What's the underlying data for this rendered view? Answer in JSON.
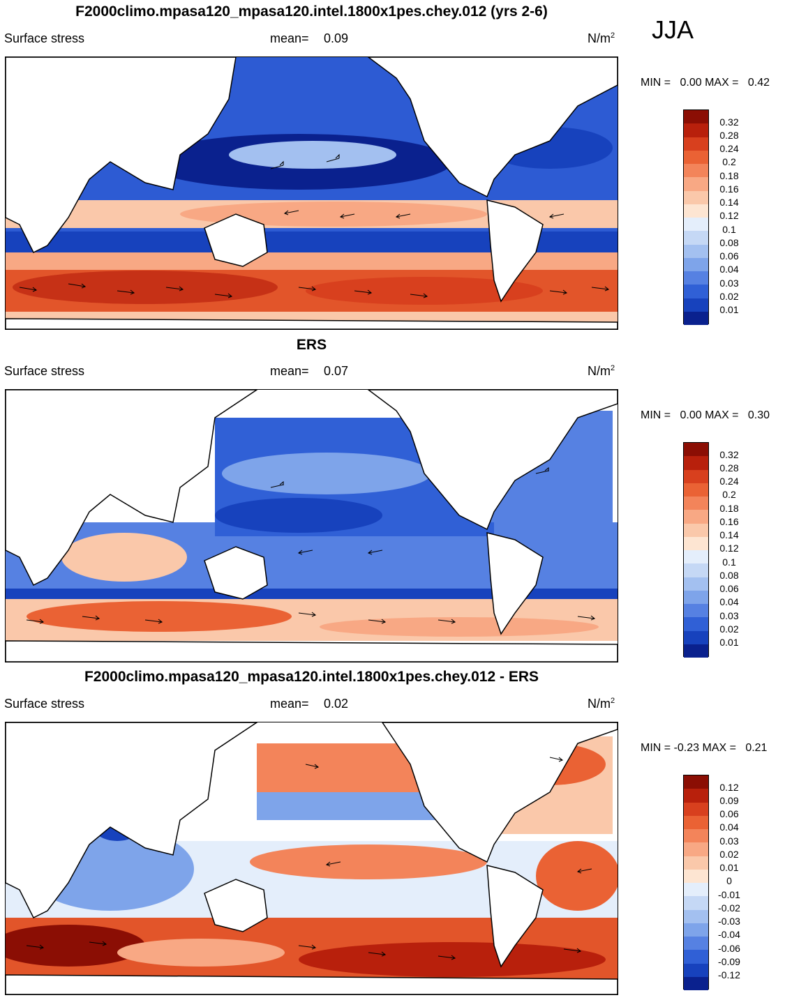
{
  "season": "JJA",
  "panels": [
    {
      "title": "F2000climo.mpasa120_mpasa120.intel.1800x1pes.chey.012 (yrs 2-6)",
      "variable": "Surface stress",
      "mean_label": "mean=",
      "mean_value": "0.09",
      "units": "N/m",
      "units_sup": "2",
      "min_label": "MIN =",
      "min_value": "0.00",
      "max_label": "MAX =",
      "max_value": "0.42",
      "colorbar_labels": [
        "0.32",
        "0.28",
        "0.24",
        "0.2",
        "0.18",
        "0.16",
        "0.14",
        "0.12",
        "0.1",
        "0.08",
        "0.06",
        "0.04",
        "0.03",
        "0.02",
        "0.01"
      ],
      "colorbar_colors": [
        "#8b0e04",
        "#b8200c",
        "#d8401e",
        "#ea6234",
        "#f3845a",
        "#f8a884",
        "#fac8aa",
        "#fde5d2",
        "#e4eefb",
        "#c5d8f5",
        "#a3c0f0",
        "#7ea4ea",
        "#5681e2",
        "#3060d6",
        "#1742bd",
        "#0a218e"
      ]
    },
    {
      "title": "ERS",
      "variable": "Surface stress",
      "mean_label": "mean=",
      "mean_value": "0.07",
      "units": "N/m",
      "units_sup": "2",
      "min_label": "MIN =",
      "min_value": "0.00",
      "max_label": "MAX =",
      "max_value": "0.30",
      "colorbar_labels": [
        "0.32",
        "0.28",
        "0.24",
        "0.2",
        "0.18",
        "0.16",
        "0.14",
        "0.12",
        "0.1",
        "0.08",
        "0.06",
        "0.04",
        "0.03",
        "0.02",
        "0.01"
      ],
      "colorbar_colors": [
        "#8b0e04",
        "#b8200c",
        "#d8401e",
        "#ea6234",
        "#f3845a",
        "#f8a884",
        "#fac8aa",
        "#fde5d2",
        "#e4eefb",
        "#c5d8f5",
        "#a3c0f0",
        "#7ea4ea",
        "#5681e2",
        "#3060d6",
        "#1742bd",
        "#0a218e"
      ]
    },
    {
      "title": "F2000climo.mpasa120_mpasa120.intel.1800x1pes.chey.012 - ERS",
      "variable": "Surface stress",
      "mean_label": "mean=",
      "mean_value": "0.02",
      "units": "N/m",
      "units_sup": "2",
      "min_label": "MIN =",
      "min_value": "-0.23",
      "max_label": "MAX =",
      "max_value": "0.21",
      "colorbar_labels": [
        "0.12",
        "0.09",
        "0.06",
        "0.04",
        "0.03",
        "0.02",
        "0.01",
        "0",
        "-0.01",
        "-0.02",
        "-0.03",
        "-0.04",
        "-0.06",
        "-0.09",
        "-0.12"
      ],
      "colorbar_colors": [
        "#8b0e04",
        "#b8200c",
        "#d8401e",
        "#ea6234",
        "#f3845a",
        "#f8a884",
        "#fac8aa",
        "#fde5d2",
        "#e4eefb",
        "#c5d8f5",
        "#a3c0f0",
        "#7ea4ea",
        "#5681e2",
        "#3060d6",
        "#1742bd",
        "#0a218e"
      ]
    }
  ]
}
